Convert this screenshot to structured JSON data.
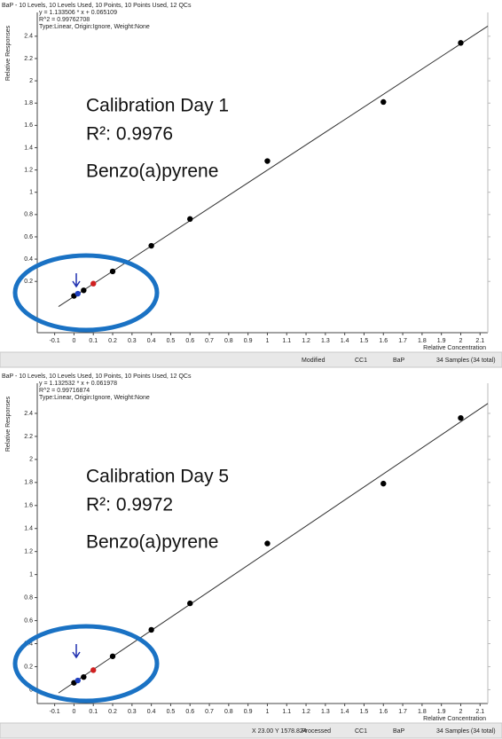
{
  "chart_data": [
    {
      "type": "scatter",
      "header": "BaP - 10 Levels, 10 Levels Used, 10 Points, 10 Points Used, 12 QCs",
      "equation": [
        "y = 1.133506 * x + 0.065109",
        "R^2 = 0.99762708",
        "Type:Linear, Origin:Ignore, Weight:None"
      ],
      "fit": {
        "slope": 1.133506,
        "intercept": 0.065109
      },
      "annotations": [
        "Calibration Day 1",
        "R²: 0.9976",
        "Benzo(a)pyrene"
      ],
      "ylabel": "Relative Responses",
      "xlabel": "Relative Concentration",
      "x": [
        0,
        0.02,
        0.05,
        0.1,
        0.2,
        0.4,
        0.6,
        1,
        1.6,
        2
      ],
      "values": [
        0.07,
        0.09,
        0.12,
        0.18,
        0.29,
        0.52,
        0.76,
        1.28,
        1.81,
        2.34
      ],
      "colors": [
        "#000",
        "#2040c0",
        "#000",
        "#d02020",
        "#000",
        "#000",
        "#000",
        "#000",
        "#000",
        "#000"
      ],
      "xlim": [
        -0.19,
        2.14
      ],
      "ylim": [
        -0.26,
        2.55
      ],
      "xticks": [
        -0.1,
        0,
        0.1,
        0.2,
        0.3,
        0.4,
        0.5,
        0.6,
        0.7,
        0.8,
        0.9,
        1,
        1.1,
        1.2,
        1.3,
        1.4,
        1.5,
        1.6,
        1.7,
        1.8,
        1.9,
        2,
        2.1
      ],
      "yticks": [
        0.2,
        0.4,
        0.6,
        0.8,
        1,
        1.2,
        1.4,
        1.6,
        1.8,
        2,
        2.2,
        2.4
      ],
      "status": [
        "Modified",
        "CC1",
        "BaP",
        "34 Samples (34 total)"
      ]
    },
    {
      "type": "scatter",
      "header": "BaP - 10 Levels, 10 Levels Used, 10 Points, 10 Points Used, 12 QCs",
      "equation": [
        "y = 1.132532 * x + 0.061978",
        "R^2 = 0.99716874",
        "Type:Linear, Origin:Ignore, Weight:None"
      ],
      "fit": {
        "slope": 1.132532,
        "intercept": 0.061978
      },
      "annotations": [
        "Calibration Day 5",
        "R²: 0.9972",
        "Benzo(a)pyrene"
      ],
      "ylabel": "Relative Responses",
      "xlabel": "Relative Concentration",
      "x": [
        0,
        0.02,
        0.05,
        0.1,
        0.2,
        0.4,
        0.6,
        1,
        1.6,
        2
      ],
      "values": [
        0.06,
        0.08,
        0.11,
        0.17,
        0.29,
        0.52,
        0.75,
        1.27,
        1.79,
        2.36
      ],
      "colors": [
        "#000",
        "#2040c0",
        "#000",
        "#d02020",
        "#000",
        "#000",
        "#000",
        "#000",
        "#000",
        "#000"
      ],
      "xlim": [
        -0.19,
        2.14
      ],
      "ylim": [
        -0.12,
        2.6
      ],
      "xticks": [
        -0.1,
        0,
        0.1,
        0.2,
        0.3,
        0.4,
        0.5,
        0.6,
        0.7,
        0.8,
        0.9,
        1,
        1.1,
        1.2,
        1.3,
        1.4,
        1.5,
        1.6,
        1.7,
        1.8,
        1.9,
        2,
        2.1
      ],
      "yticks": [
        0,
        0.2,
        0.4,
        0.6,
        0.8,
        1,
        1.2,
        1.4,
        1.6,
        1.8,
        2,
        2.2,
        2.4
      ],
      "status": [
        "X 23.00  Y 1578.824",
        "Processed",
        "CC1",
        "BaP",
        "34 Samples (34 total)"
      ]
    }
  ]
}
